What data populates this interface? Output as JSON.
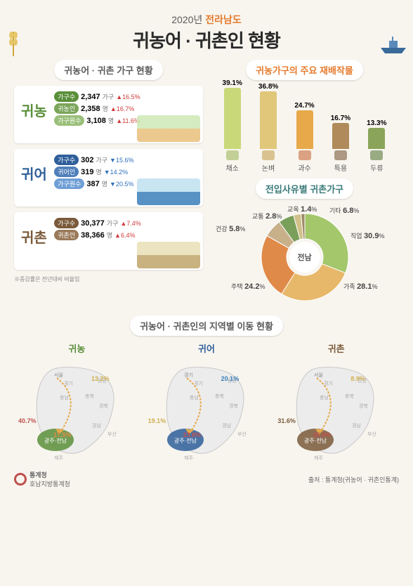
{
  "header": {
    "year": "2020년",
    "region": "전라남도",
    "title": "귀농어 · 귀촌인 현황"
  },
  "household_section_title": "귀농어 · 귀촌 가구 현황",
  "cards": [
    {
      "name": "귀농",
      "color_class": "green",
      "art": "art-farm",
      "rows": [
        {
          "pill": "가구수",
          "pill_cls": "pill-green",
          "val": "2,347",
          "unit": "가구",
          "delta": "16.5",
          "dir": "up"
        },
        {
          "pill": "귀농인",
          "pill_cls": "pill-green2",
          "val": "2,358",
          "unit": "명",
          "delta": "16.7",
          "dir": "up"
        },
        {
          "pill": "가구원수",
          "pill_cls": "pill-green3",
          "val": "3,108",
          "unit": "명",
          "delta": "11.6",
          "dir": "up"
        }
      ]
    },
    {
      "name": "귀어",
      "color_class": "blue",
      "art": "art-sea",
      "rows": [
        {
          "pill": "가구수",
          "pill_cls": "pill-blue",
          "val": "302",
          "unit": "가구",
          "delta": "15.6",
          "dir": "down"
        },
        {
          "pill": "귀어인",
          "pill_cls": "pill-blue2",
          "val": "319",
          "unit": "명",
          "delta": "14.2",
          "dir": "down"
        },
        {
          "pill": "가구원수",
          "pill_cls": "pill-blue3",
          "val": "387",
          "unit": "명",
          "delta": "20.5",
          "dir": "down"
        }
      ]
    },
    {
      "name": "귀촌",
      "color_class": "brown",
      "art": "art-vil",
      "rows": [
        {
          "pill": "가구수",
          "pill_cls": "pill-brown",
          "val": "30,377",
          "unit": "가구",
          "delta": "7.4",
          "dir": "up"
        },
        {
          "pill": "귀촌인",
          "pill_cls": "pill-brown2",
          "val": "38,366",
          "unit": "명",
          "delta": "6.4",
          "dir": "up"
        }
      ]
    }
  ],
  "note": "※증감률은 전년대비 비율임",
  "crops_title": "귀농가구의 주요 재배작물",
  "crops": {
    "type": "bar",
    "max": 45,
    "items": [
      {
        "cat": "채소",
        "val": 39.1,
        "color": "#c9d97a",
        "icon": "#9fb85a"
      },
      {
        "cat": "논벼",
        "val": 36.8,
        "color": "#e0c77a",
        "icon": "#c7a050"
      },
      {
        "cat": "과수",
        "val": 24.7,
        "color": "#e7a94a",
        "icon": "#c76a3a"
      },
      {
        "cat": "특용",
        "val": 16.7,
        "color": "#b08a5a",
        "icon": "#7a5a3a"
      },
      {
        "cat": "두류",
        "val": 13.3,
        "color": "#8aa55a",
        "icon": "#5a7a3a"
      }
    ]
  },
  "reason_title": "전입사유별 귀촌가구",
  "pie": {
    "center": "전남",
    "slices": [
      {
        "label": "직업",
        "val": 30.9,
        "color": "#a3c76a"
      },
      {
        "label": "가족",
        "val": 28.1,
        "color": "#e7b86a"
      },
      {
        "label": "주택",
        "val": 24.2,
        "color": "#e08a4a"
      },
      {
        "label": "기타",
        "val": 6.8,
        "color": "#c7b08a"
      },
      {
        "label": "건강",
        "val": 5.8,
        "color": "#7a9f5a"
      },
      {
        "label": "교통",
        "val": 2.8,
        "color": "#d0c08a"
      },
      {
        "label": "교육",
        "val": 1.4,
        "color": "#9f8a6a"
      }
    ]
  },
  "maps_title": "귀농어 · 귀촌인의 지역별 이동 현황",
  "maps": [
    {
      "name": "귀농",
      "cls": "mn-green",
      "accent": "#5a8f3a",
      "vals": [
        {
          "label": "40.7",
          "pos": "sw",
          "color": "#c0504d"
        },
        {
          "label": "17.5",
          "pos": "s",
          "color": "#e08a4a"
        },
        {
          "label": "13.2",
          "pos": "ne",
          "color": "#d0b050"
        }
      ],
      "origin": "서울"
    },
    {
      "name": "귀어",
      "cls": "mn-blue",
      "accent": "#2f5f9a",
      "vals": [
        {
          "label": "23.8",
          "pos": "s",
          "color": "#c0504d"
        },
        {
          "label": "20.1",
          "pos": "ne",
          "color": "#3a7fba"
        },
        {
          "label": "19.1",
          "pos": "sw",
          "color": "#d0b050"
        }
      ],
      "origin": "경기"
    },
    {
      "name": "귀촌",
      "cls": "mn-brown",
      "accent": "#7a5a3a",
      "vals": [
        {
          "label": "35.9",
          "pos": "s",
          "color": "#c0504d"
        },
        {
          "label": "31.6",
          "pos": "sw",
          "color": "#7a5a3a"
        },
        {
          "label": "8.9",
          "pos": "ne",
          "color": "#d0b050"
        }
      ],
      "origin": "서울"
    }
  ],
  "map_regions": [
    "서울",
    "경기",
    "강원",
    "충북",
    "충남",
    "경북",
    "경남",
    "부산",
    "제주",
    "광주·전남"
  ],
  "footer": {
    "org1": "통계청",
    "org2": "호남지방통계청",
    "source": "출처 : 통계청(귀농어 · 귀촌인통계)"
  }
}
